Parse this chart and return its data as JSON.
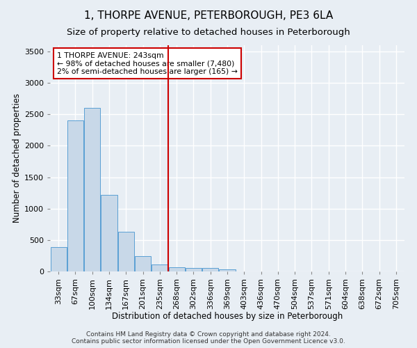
{
  "title": "1, THORPE AVENUE, PETERBOROUGH, PE3 6LA",
  "subtitle": "Size of property relative to detached houses in Peterborough",
  "xlabel": "Distribution of detached houses by size in Peterborough",
  "ylabel": "Number of detached properties",
  "footer_line1": "Contains HM Land Registry data © Crown copyright and database right 2024.",
  "footer_line2": "Contains public sector information licensed under the Open Government Licence v3.0.",
  "bar_labels": [
    "33sqm",
    "67sqm",
    "100sqm",
    "134sqm",
    "167sqm",
    "201sqm",
    "235sqm",
    "268sqm",
    "302sqm",
    "336sqm",
    "369sqm",
    "403sqm",
    "436sqm",
    "470sqm",
    "504sqm",
    "537sqm",
    "571sqm",
    "604sqm",
    "638sqm",
    "672sqm",
    "705sqm"
  ],
  "bar_values": [
    390,
    2400,
    2600,
    1220,
    630,
    240,
    110,
    65,
    55,
    55,
    30,
    0,
    0,
    0,
    0,
    0,
    0,
    0,
    0,
    0,
    0
  ],
  "bar_color": "#c8d8e8",
  "bar_edge_color": "#5a9fd4",
  "vline_x_index": 6.5,
  "vline_color": "#cc0000",
  "annotation_text": "1 THORPE AVENUE: 243sqm\n← 98% of detached houses are smaller (7,480)\n2% of semi-detached houses are larger (165) →",
  "annotation_box_color": "white",
  "annotation_box_edge_color": "#cc0000",
  "ylim": [
    0,
    3600
  ],
  "yticks": [
    0,
    500,
    1000,
    1500,
    2000,
    2500,
    3000,
    3500
  ],
  "background_color": "#e8eef4",
  "grid_color": "white",
  "title_fontsize": 11,
  "subtitle_fontsize": 9.5,
  "xlabel_fontsize": 8.5,
  "ylabel_fontsize": 8.5,
  "tick_fontsize": 8,
  "footer_fontsize": 6.5
}
